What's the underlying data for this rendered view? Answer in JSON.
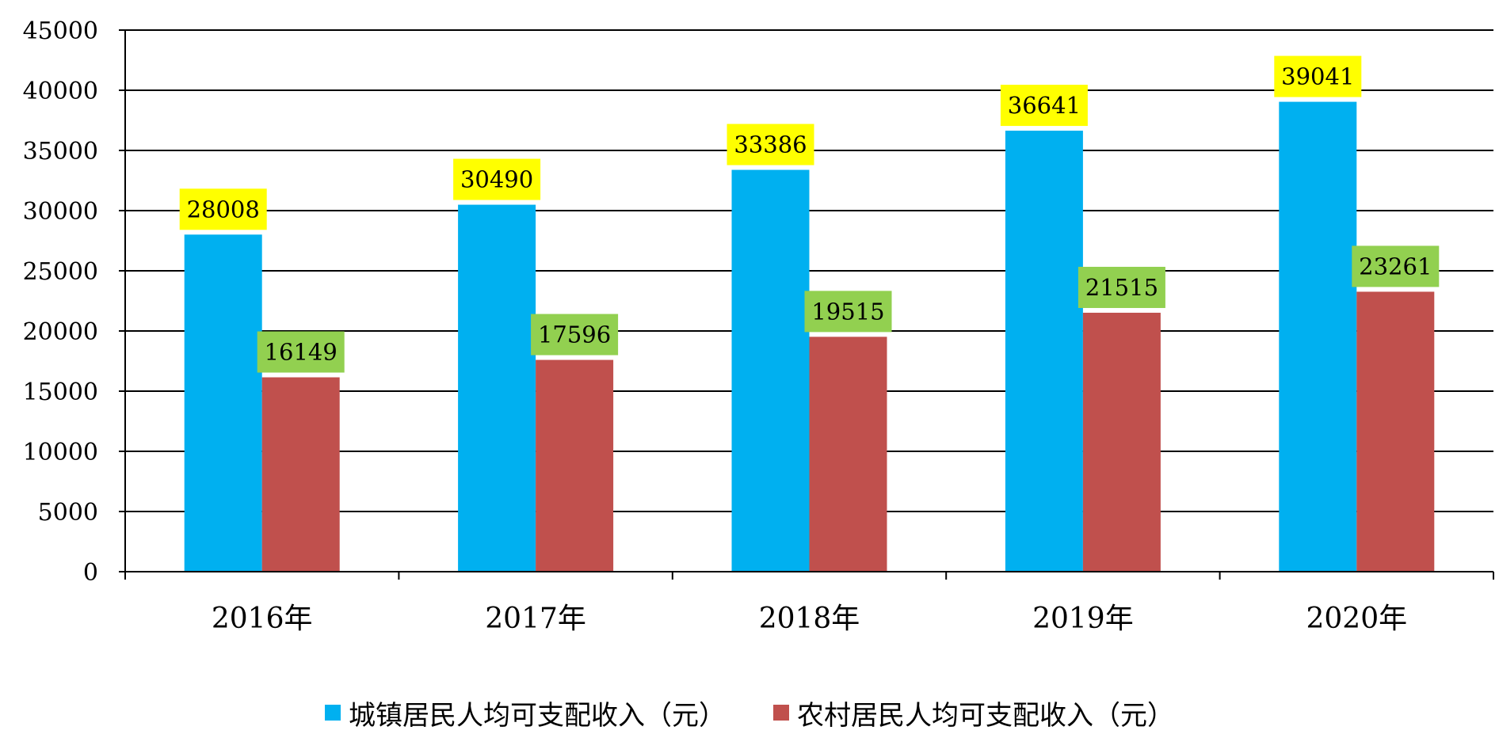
{
  "chart_data": {
    "type": "bar",
    "categories": [
      "2016年",
      "2017年",
      "2018年",
      "2019年",
      "2020年"
    ],
    "series": [
      {
        "name": "城镇居民人均可支配收入（元）",
        "color": "#00B0F0",
        "label_bg": "#FFFF00",
        "values": [
          28008,
          30490,
          33386,
          36641,
          39041
        ]
      },
      {
        "name": "农村居民人均可支配收入（元）",
        "color": "#C0504D",
        "label_bg": "#92D050",
        "values": [
          16149,
          17596,
          19515,
          21515,
          23261
        ]
      }
    ],
    "title": "",
    "xlabel": "",
    "ylabel": "",
    "ylim": [
      0,
      45000
    ],
    "yticks": [
      "0",
      "5000",
      "10000",
      "15000",
      "20000",
      "25000",
      "30000",
      "35000",
      "40000",
      "45000"
    ],
    "grid": true,
    "legend_position": "bottom"
  }
}
